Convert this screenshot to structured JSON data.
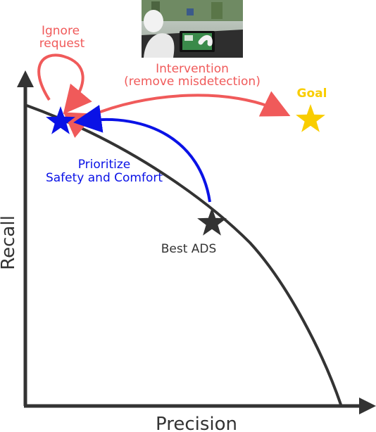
{
  "axes": {
    "x_label": "Precision",
    "y_label": "Recall"
  },
  "labels": {
    "ignore_line1": "Ignore",
    "ignore_line2": "request",
    "intervention_line1": "Intervention",
    "intervention_line2": "(remove misdetection)",
    "goal": "Goal",
    "prioritize_line1": "Prioritize",
    "prioritize_line2": "Safety and Comfort",
    "best_ads": "Best ADS"
  },
  "colors": {
    "axis": "#333333",
    "curve": "#333333",
    "red_arrows": "#f05a5a",
    "blue": "#0a12e6",
    "goal_star": "#f9cd00",
    "best_star": "#333333",
    "blue_star": "#0a12e6"
  },
  "photo": {
    "description_icon": "driving-cockpit-photo-icon"
  }
}
